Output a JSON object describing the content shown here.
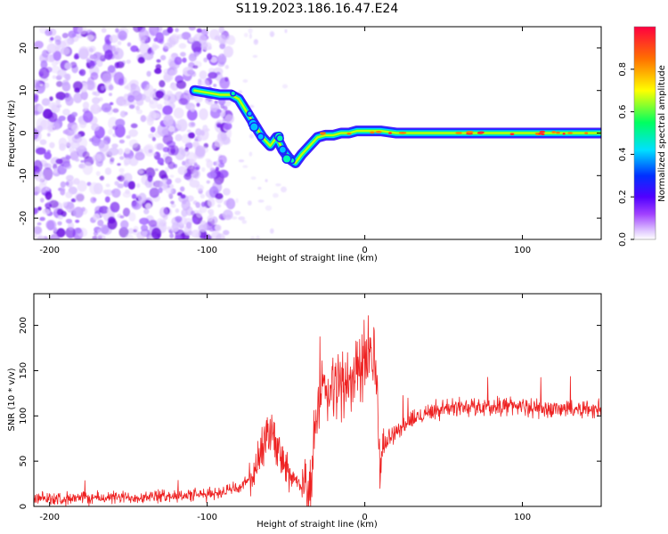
{
  "figure": {
    "title": "S119.2023.186.16.47.E24"
  },
  "chart_data": [
    {
      "type": "heatmap",
      "xlabel": "Height of straight line (km)",
      "ylabel": "Frequency (Hz)",
      "xlim": [
        -210,
        150
      ],
      "ylim": [
        -25,
        25
      ],
      "xticks": [
        -200,
        -100,
        0,
        100
      ],
      "yticks": [
        -20,
        -10,
        0,
        10,
        20
      ],
      "grid": false,
      "colorbar": {
        "label": "Normalized spectral amplitude",
        "range": [
          0.0,
          1.0
        ],
        "ticks": [
          0.0,
          0.2,
          0.4,
          0.6,
          0.8
        ],
        "colormap": [
          "#ffffff",
          "#e0c8ff",
          "#a040ff",
          "#5000ff",
          "#0030ff",
          "#00e0ff",
          "#00ff60",
          "#ffff00",
          "#ff7000",
          "#ff0040"
        ]
      },
      "ridge": {
        "x": [
          -108,
          -100,
          -92,
          -85,
          -80,
          -75,
          -70,
          -65,
          -60,
          -56,
          -52,
          -48,
          -44,
          -40,
          -35,
          -30,
          -25,
          -20,
          -15,
          -10,
          -5,
          0,
          5,
          10,
          20,
          40,
          60,
          80,
          100,
          120,
          150
        ],
        "y": [
          10,
          9.5,
          9,
          9,
          8,
          5,
          2,
          -1,
          -3,
          -1,
          -4,
          -6,
          -7,
          -5,
          -3,
          -1,
          -0.5,
          -0.5,
          0,
          0,
          0.5,
          0.5,
          0.5,
          0.5,
          0,
          0,
          0,
          0,
          0,
          0,
          0
        ]
      }
    },
    {
      "type": "line",
      "xlabel": "Height of straight line (km)",
      "ylabel": "SNR (10 * v/v)",
      "xlim": [
        -210,
        150
      ],
      "ylim": [
        0,
        235
      ],
      "xticks": [
        -200,
        -100,
        0,
        100
      ],
      "yticks": [
        0,
        50,
        100,
        150,
        200
      ],
      "grid": false,
      "series": [
        {
          "color": "#ee2222",
          "x": [
            -210,
            -150,
            -100,
            -80,
            -70,
            -65,
            -62,
            -58,
            -55,
            -50,
            -45,
            -40,
            -35,
            -33,
            -30,
            -27,
            -24,
            -20,
            -15,
            -10,
            -5,
            0,
            3,
            6,
            8,
            9,
            10,
            12,
            15,
            20,
            25,
            30,
            40,
            50,
            60,
            80,
            95,
            100,
            110,
            130,
            150
          ],
          "y": [
            8,
            10,
            13,
            20,
            35,
            55,
            80,
            80,
            60,
            40,
            30,
            20,
            10,
            60,
            110,
            130,
            120,
            130,
            140,
            130,
            150,
            160,
            165,
            175,
            130,
            50,
            55,
            65,
            75,
            85,
            90,
            95,
            105,
            108,
            110,
            110,
            112,
            110,
            108,
            108,
            108
          ]
        }
      ]
    }
  ]
}
